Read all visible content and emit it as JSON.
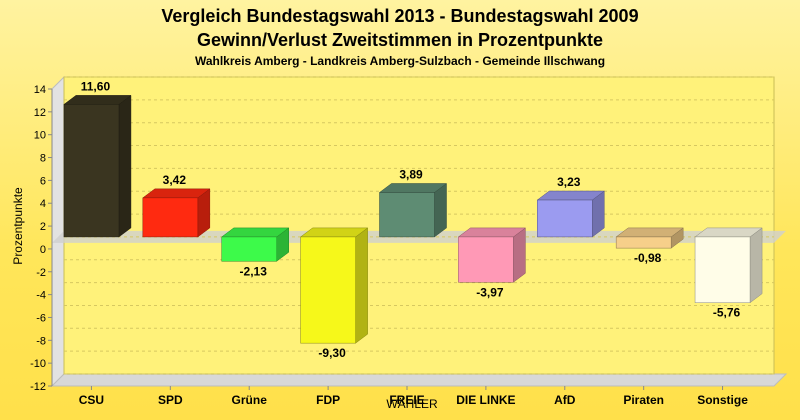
{
  "chart_data": {
    "type": "bar",
    "title": "Vergleich Bundestagswahl 2013 - Bundestagswahl 2009",
    "subtitle": "Gewinn/Verlust Zweitstimmen in Prozentpunkte",
    "subsubtitle": "Wahlkreis Amberg - Landkreis Amberg-Sulzbach - Gemeinde Illschwang",
    "xlabel": "WÄHLER",
    "ylabel": "Prozentpunkte",
    "ylim": [
      -12,
      14
    ],
    "yticks": [
      14,
      12,
      10,
      8,
      6,
      4,
      2,
      0,
      -2,
      -4,
      -6,
      -8,
      -10,
      -12
    ],
    "categories": [
      "CSU",
      "SPD",
      "Grüne",
      "FDP",
      "FREIE",
      "DIE LINKE",
      "AfD",
      "Piraten",
      "Sonstige"
    ],
    "values": [
      11.6,
      3.42,
      -2.13,
      -9.3,
      3.89,
      -3.97,
      3.23,
      -0.98,
      -5.76
    ],
    "value_labels": [
      "11,60",
      "3,42",
      "-2,13",
      "-9,30",
      "3,89",
      "-3,97",
      "3,23",
      "-0,98",
      "-5,76"
    ],
    "colors": [
      "#3a3520",
      "#ff2a10",
      "#3dfa4a",
      "#f6f81a",
      "#5e8c73",
      "#ff99b6",
      "#9b9bf0",
      "#f6cf8a",
      "#fffde8"
    ],
    "grid": true
  }
}
